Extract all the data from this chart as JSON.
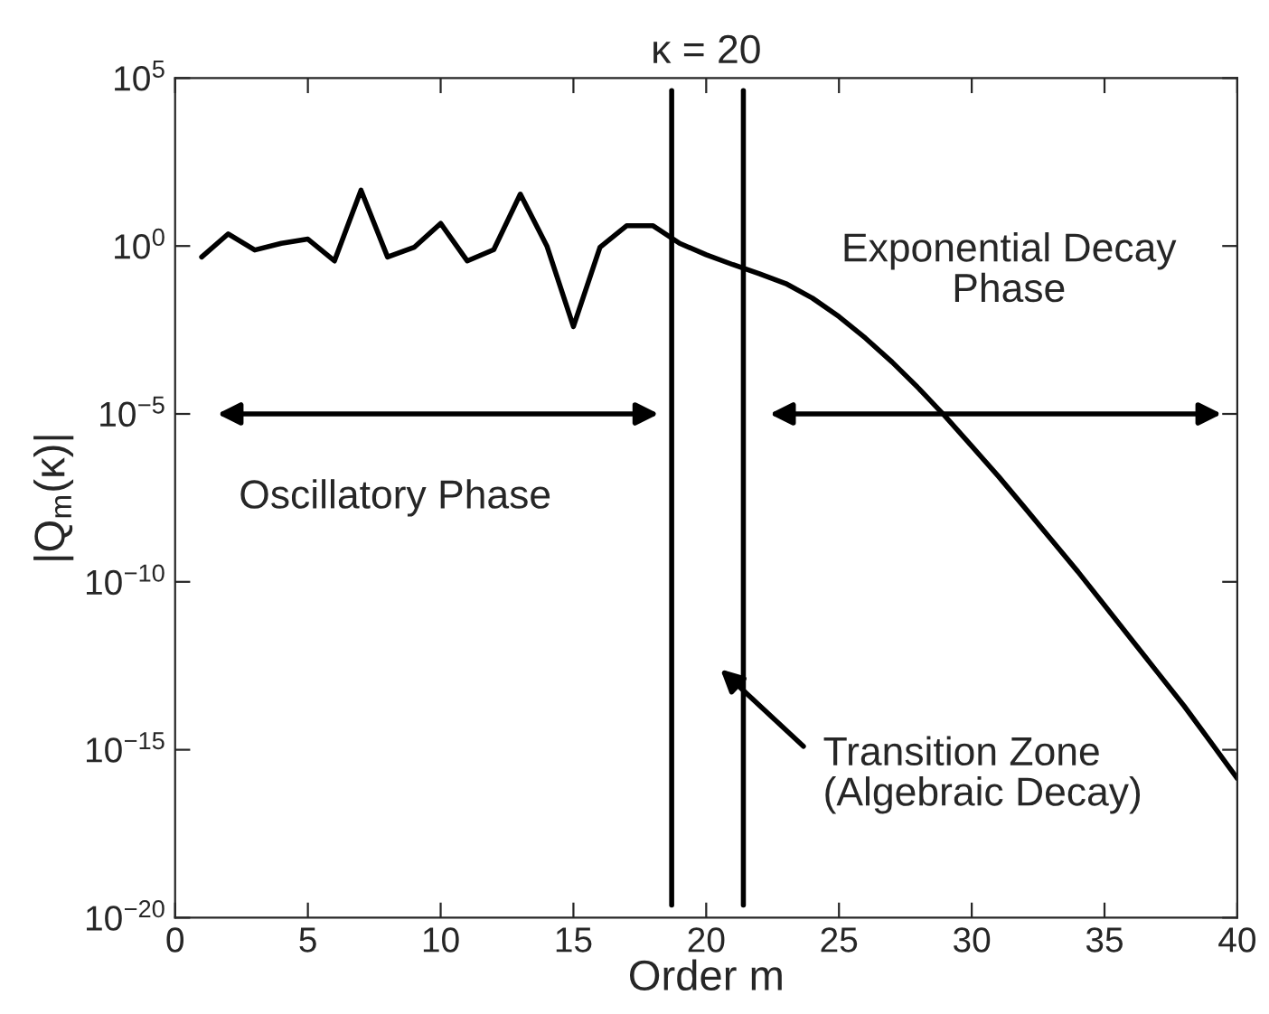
{
  "chart_data": {
    "type": "line",
    "title": "κ = 20",
    "xlabel": "Order m",
    "ylabel": "|Q$_{m}$(κ)|",
    "x": [
      1,
      2,
      3,
      4,
      5,
      6,
      7,
      8,
      9,
      10,
      11,
      12,
      13,
      14,
      15,
      16,
      17,
      18,
      19,
      20,
      21,
      22,
      23,
      24,
      25,
      26,
      27,
      28,
      29,
      30,
      31,
      32,
      33,
      34,
      35,
      36,
      37,
      38,
      39,
      40
    ],
    "series": [
      {
        "color": "#000000",
        "values": [
          0.47,
          2.3,
          0.76,
          1.2,
          1.6,
          0.36,
          46,
          0.47,
          0.91,
          4.7,
          0.36,
          0.78,
          35,
          1.0,
          0.004,
          0.91,
          4.0,
          4.0,
          1.2,
          0.55,
          0.28,
          0.15,
          0.076,
          0.028,
          0.0079,
          0.0018,
          0.00035,
          5.8e-05,
          8.5e-06,
          1.1e-06,
          1.4e-07,
          1.6e-08,
          1.8e-09,
          2e-10,
          2e-11,
          2e-12,
          2e-13,
          2e-14,
          1.7e-15,
          1.4e-16
        ]
      }
    ],
    "log": "y",
    "xlim": [
      0,
      40
    ],
    "xticks": [
      0,
      5,
      10,
      15,
      20,
      25,
      30,
      35,
      40
    ],
    "ylim": [
      1e-20,
      100000.0
    ],
    "yticks": [
      {
        "value": 1e-20,
        "label": "10$^{−20}$"
      },
      {
        "value": 1e-15,
        "label": "10$^{−15}$"
      },
      {
        "value": 1e-10,
        "label": "10$^{−10}$"
      },
      {
        "value": 1e-05,
        "label": "10$^{−5}$"
      },
      {
        "value": 1,
        "label": "10$^{0}$"
      },
      {
        "value": 100000.0,
        "label": "10$^{5}$"
      }
    ],
    "ref_lines": [
      {
        "axis": "x",
        "value": 18.7,
        "color": "#000000"
      },
      {
        "axis": "x",
        "value": 21.4,
        "color": "#000000"
      }
    ],
    "annotations": [
      "Oscillatory Phase",
      "Exponential Decay\nPhase",
      "Transition Zone\n(Algebraic Decay)"
    ],
    "grid": false,
    "line_style": "solid",
    "marker": "none"
  }
}
